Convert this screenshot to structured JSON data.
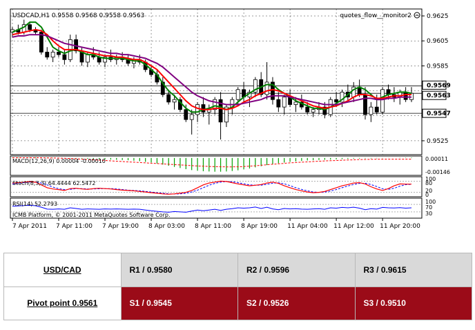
{
  "chart": {
    "title": "USDCAD,H1  0.9558 0.9568 0.9558 0.9563",
    "indicator_label": "quotes_flow__monitor2",
    "price_ticks": [
      "0.9625",
      "0.9605",
      "0.9585",
      "0.9525"
    ],
    "price_tags": [
      "0.9569",
      "0.9563",
      "0.9547"
    ],
    "time_ticks": [
      "7 Apr 2011",
      "7 Apr 11:00",
      "7 Apr 19:00",
      "8 Apr 03:00",
      "8 Apr 11:00",
      "8 Apr 19:00",
      "11 Apr 04:00",
      "11 Apr 12:00",
      "11 Apr 20:00"
    ],
    "copyright": "ICMB Platform, © 2001-2011 MetaQuotes Software Corp.",
    "colors": {
      "candle": "#000000",
      "ma_fast": "#008000",
      "ma_mid": "#ff0000",
      "ma_slow": "#800080",
      "macd": "#00a000",
      "signal": "#ff0000",
      "stoch_main": "#ff0000",
      "stoch_signal": "#0000ff",
      "rsi": "#0000ff"
    }
  },
  "macd": {
    "label": "MACD(12,26,9) 0.00004 -0.00010",
    "ticks": [
      "0.00011",
      "-0.00146"
    ]
  },
  "stoch": {
    "label": "Stoch(8,3,3) 64.4444 62.5472",
    "ticks": [
      "100",
      "80",
      "20",
      "0"
    ]
  },
  "rsi": {
    "label": "RSI(14) 52.2793",
    "ticks": [
      "100",
      "70",
      "30"
    ]
  },
  "chart_data": {
    "type": "candlestick",
    "title": "USDCAD,H1  0.9558 0.9568 0.9558 0.9563",
    "ylim": [
      0.9515,
      0.963
    ],
    "horizontal_levels": [
      0.9569,
      0.9563,
      0.9547
    ],
    "candles": [
      [
        0.9612,
        0.9616,
        0.9608,
        0.9614
      ],
      [
        0.9614,
        0.9618,
        0.961,
        0.9612
      ],
      [
        0.9612,
        0.9622,
        0.961,
        0.9618
      ],
      [
        0.9618,
        0.962,
        0.9612,
        0.9614
      ],
      [
        0.9614,
        0.9616,
        0.961,
        0.9612
      ],
      [
        0.9612,
        0.9614,
        0.9594,
        0.9596
      ],
      [
        0.9596,
        0.96,
        0.959,
        0.9592
      ],
      [
        0.9592,
        0.9598,
        0.9588,
        0.9596
      ],
      [
        0.9596,
        0.96,
        0.9592,
        0.9594
      ],
      [
        0.9594,
        0.9598,
        0.9586,
        0.959
      ],
      [
        0.959,
        0.961,
        0.9588,
        0.9606
      ],
      [
        0.9606,
        0.961,
        0.9595,
        0.9597
      ],
      [
        0.9597,
        0.96,
        0.9585,
        0.9588
      ],
      [
        0.9588,
        0.9596,
        0.9584,
        0.9594
      ],
      [
        0.9594,
        0.96,
        0.959,
        0.9592
      ],
      [
        0.9592,
        0.9596,
        0.9586,
        0.9588
      ],
      [
        0.9588,
        0.9594,
        0.9584,
        0.9592
      ],
      [
        0.9592,
        0.9598,
        0.9588,
        0.959
      ],
      [
        0.959,
        0.9594,
        0.9586,
        0.9592
      ],
      [
        0.9592,
        0.9596,
        0.9588,
        0.959
      ],
      [
        0.959,
        0.9594,
        0.9585,
        0.9587
      ],
      [
        0.9587,
        0.9592,
        0.9583,
        0.959
      ],
      [
        0.959,
        0.9594,
        0.9586,
        0.9588
      ],
      [
        0.9588,
        0.959,
        0.958,
        0.9582
      ],
      [
        0.9582,
        0.9586,
        0.9576,
        0.9578
      ],
      [
        0.9578,
        0.9582,
        0.957,
        0.9572
      ],
      [
        0.9572,
        0.9576,
        0.956,
        0.9562
      ],
      [
        0.9562,
        0.9566,
        0.9554,
        0.9556
      ],
      [
        0.9556,
        0.9562,
        0.955,
        0.9558
      ],
      [
        0.9558,
        0.956,
        0.9548,
        0.955
      ],
      [
        0.955,
        0.9554,
        0.954,
        0.9542
      ],
      [
        0.9542,
        0.955,
        0.953,
        0.9546
      ],
      [
        0.9546,
        0.9556,
        0.954,
        0.9554
      ],
      [
        0.9554,
        0.956,
        0.9544,
        0.9548
      ],
      [
        0.9548,
        0.9554,
        0.9538,
        0.955
      ],
      [
        0.955,
        0.956,
        0.9546,
        0.9558
      ],
      [
        0.9558,
        0.9564,
        0.9526,
        0.954
      ],
      [
        0.954,
        0.9554,
        0.9536,
        0.9552
      ],
      [
        0.9552,
        0.956,
        0.9546,
        0.9558
      ],
      [
        0.9558,
        0.9568,
        0.9554,
        0.9566
      ],
      [
        0.9566,
        0.9572,
        0.9556,
        0.956
      ],
      [
        0.956,
        0.9566,
        0.9552,
        0.9564
      ],
      [
        0.9564,
        0.9576,
        0.956,
        0.9574
      ],
      [
        0.9574,
        0.958,
        0.956,
        0.9562
      ],
      [
        0.9562,
        0.9588,
        0.9558,
        0.9572
      ],
      [
        0.9572,
        0.9576,
        0.9554,
        0.9558
      ],
      [
        0.9558,
        0.9564,
        0.9548,
        0.9552
      ],
      [
        0.9552,
        0.9562,
        0.9546,
        0.956
      ],
      [
        0.956,
        0.9566,
        0.9552,
        0.9554
      ],
      [
        0.9554,
        0.956,
        0.9548,
        0.9556
      ],
      [
        0.9556,
        0.9562,
        0.955,
        0.9552
      ],
      [
        0.9552,
        0.9556,
        0.9546,
        0.9548
      ],
      [
        0.9548,
        0.9552,
        0.9544,
        0.955
      ],
      [
        0.955,
        0.9556,
        0.9546,
        0.9552
      ],
      [
        0.9552,
        0.9556,
        0.9543,
        0.9546
      ],
      [
        0.9546,
        0.956,
        0.9544,
        0.9558
      ],
      [
        0.9558,
        0.9564,
        0.9552,
        0.9556
      ],
      [
        0.9556,
        0.9566,
        0.9552,
        0.9564
      ],
      [
        0.9564,
        0.957,
        0.9556,
        0.956
      ],
      [
        0.956,
        0.9572,
        0.9556,
        0.9568
      ],
      [
        0.9568,
        0.9574,
        0.956,
        0.9562
      ],
      [
        0.9562,
        0.9568,
        0.9542,
        0.9546
      ],
      [
        0.9546,
        0.9556,
        0.954,
        0.9552
      ],
      [
        0.9552,
        0.9562,
        0.9546,
        0.9548
      ],
      [
        0.9548,
        0.9568,
        0.9546,
        0.9566
      ],
      [
        0.9566,
        0.957,
        0.9558,
        0.9562
      ],
      [
        0.9562,
        0.9568,
        0.9556,
        0.956
      ],
      [
        0.956,
        0.9566,
        0.9554,
        0.9564
      ],
      [
        0.9564,
        0.9568,
        0.9556,
        0.9558
      ],
      [
        0.9558,
        0.9568,
        0.9556,
        0.9563
      ]
    ],
    "series": [
      {
        "name": "MA fast",
        "values": [
          0.9612,
          0.9614,
          0.9616,
          0.962,
          0.962,
          0.9616,
          0.9608,
          0.96,
          0.9597,
          0.9595,
          0.9597,
          0.9598,
          0.9596,
          0.9594,
          0.9594,
          0.9592,
          0.9591,
          0.9591,
          0.9591,
          0.9591,
          0.959,
          0.9589,
          0.9589,
          0.9586,
          0.9582,
          0.9578,
          0.9571,
          0.9565,
          0.9561,
          0.9556,
          0.9551,
          0.9548,
          0.9548,
          0.955,
          0.9551,
          0.9553,
          0.9552,
          0.955,
          0.9552,
          0.9556,
          0.956,
          0.9563,
          0.9566,
          0.9568,
          0.957,
          0.957,
          0.9566,
          0.9563,
          0.956,
          0.9557,
          0.9555,
          0.9553,
          0.9551,
          0.9551,
          0.955,
          0.9552,
          0.9555,
          0.9558,
          0.9562,
          0.9566,
          0.9568,
          0.9566,
          0.9562,
          0.9558,
          0.956,
          0.9562,
          0.9563,
          0.9564,
          0.9564,
          0.9563
        ]
      },
      {
        "name": "MA mid",
        "values": [
          0.961,
          0.9611,
          0.9612,
          0.9613,
          0.9614,
          0.9613,
          0.961,
          0.9605,
          0.9601,
          0.9598,
          0.9598,
          0.9598,
          0.9597,
          0.9596,
          0.9595,
          0.9594,
          0.9593,
          0.9593,
          0.9592,
          0.9592,
          0.9591,
          0.959,
          0.959,
          0.9588,
          0.9585,
          0.9582,
          0.9577,
          0.9572,
          0.9567,
          0.9562,
          0.9557,
          0.9553,
          0.9551,
          0.955,
          0.955,
          0.9551,
          0.9551,
          0.955,
          0.9551,
          0.9553,
          0.9556,
          0.9558,
          0.9561,
          0.9563,
          0.9565,
          0.9566,
          0.9565,
          0.9563,
          0.9561,
          0.9559,
          0.9557,
          0.9555,
          0.9553,
          0.9552,
          0.9551,
          0.9552,
          0.9553,
          0.9555,
          0.9557,
          0.956,
          0.9562,
          0.9562,
          0.9561,
          0.9559,
          0.9559,
          0.956,
          0.9561,
          0.9561,
          0.9562,
          0.9562
        ]
      },
      {
        "name": "MA slow",
        "values": [
          0.9608,
          0.9609,
          0.9609,
          0.961,
          0.961,
          0.961,
          0.9609,
          0.9607,
          0.9605,
          0.9603,
          0.9602,
          0.9601,
          0.96,
          0.9599,
          0.9598,
          0.9597,
          0.9596,
          0.9595,
          0.9595,
          0.9594,
          0.9594,
          0.9593,
          0.9592,
          0.9591,
          0.9589,
          0.9587,
          0.9584,
          0.958,
          0.9576,
          0.9572,
          0.9568,
          0.9564,
          0.9561,
          0.9559,
          0.9557,
          0.9556,
          0.9555,
          0.9554,
          0.9554,
          0.9554,
          0.9555,
          0.9556,
          0.9557,
          0.9558,
          0.956,
          0.9561,
          0.9561,
          0.9561,
          0.956,
          0.9559,
          0.9558,
          0.9557,
          0.9556,
          0.9555,
          0.9554,
          0.9554,
          0.9554,
          0.9555,
          0.9556,
          0.9557,
          0.9558,
          0.9559,
          0.9559,
          0.9558,
          0.9558,
          0.9559,
          0.9559,
          0.956,
          0.956,
          0.956
        ]
      }
    ],
    "macd_histogram": [
      4e-05,
      4e-05,
      5e-05,
      6e-05,
      6e-05,
      5e-05,
      4e-05,
      2e-05,
      1e-05,
      0.0,
      -2e-05,
      -4e-05,
      -5e-05,
      -7e-05,
      -8e-05,
      -0.0001,
      -0.00012,
      -0.00014,
      -0.00016,
      -0.00018,
      -0.0002,
      -0.00024,
      -0.00028,
      -0.00034,
      -0.0004,
      -0.00048,
      -0.00058,
      -0.00068,
      -0.00078,
      -0.00088,
      -0.00098,
      -0.00106,
      -0.00112,
      -0.00116,
      -0.00118,
      -0.0012,
      -0.0012,
      -0.00118,
      -0.00114,
      -0.00108,
      -0.001,
      -0.00092,
      -0.00082,
      -0.00072,
      -0.00062,
      -0.00054,
      -0.00046,
      -0.0004,
      -0.00034,
      -0.0003,
      -0.00026,
      -0.00022,
      -0.0002,
      -0.00018,
      -0.00016,
      -0.00014,
      -0.00012,
      -0.0001,
      -8e-05,
      -6e-05,
      -5e-05,
      -4e-05,
      -4e-05,
      -3e-05,
      -2e-05,
      -1e-05,
      0.0,
      2e-05,
      3e-05,
      4e-05
    ],
    "macd_signal": [
      2e-05,
      2e-05,
      2e-05,
      2e-05,
      2e-05,
      2e-05,
      1e-05,
      0.0,
      -1e-05,
      -3e-05,
      -5e-05,
      -7e-05,
      -0.0001,
      -0.00013,
      -0.00016,
      -0.00019,
      -0.00022,
      -0.00025,
      -0.00028,
      -0.00031,
      -0.00034,
      -0.00037,
      -0.0004,
      -0.00043,
      -0.00046,
      -0.00049,
      -0.00052,
      -0.00055,
      -0.00058,
      -0.00061,
      -0.00064,
      -0.00067,
      -0.0007,
      -0.00072,
      -0.00074,
      -0.00076,
      -0.00077,
      -0.00078,
      -0.00078,
      -0.00077,
      -0.00075,
      -0.00072,
      -0.00068,
      -0.00064,
      -0.00059,
      -0.00055,
      -0.00051,
      -0.00047,
      -0.00043,
      -0.0004,
      -0.00037,
      -0.00034,
      -0.00031,
      -0.00028,
      -0.00026,
      -0.00024,
      -0.00022,
      -0.0002,
      -0.00018,
      -0.00016,
      -0.00014,
      -0.00013,
      -0.00012,
      -0.00011,
      -0.0001,
      -0.0001,
      -0.0001,
      -0.0001,
      -0.0001,
      -0.0001
    ],
    "stoch_main": [
      70,
      72,
      75,
      78,
      74,
      60,
      45,
      38,
      35,
      30,
      40,
      42,
      38,
      36,
      40,
      42,
      40,
      38,
      35,
      32,
      30,
      28,
      25,
      22,
      18,
      15,
      12,
      10,
      12,
      15,
      20,
      30,
      45,
      60,
      70,
      75,
      80,
      78,
      72,
      65,
      60,
      55,
      58,
      62,
      70,
      75,
      68,
      55,
      45,
      35,
      28,
      22,
      18,
      20,
      25,
      35,
      45,
      55,
      62,
      70,
      72,
      65,
      50,
      38,
      30,
      40,
      55,
      65,
      64,
      64
    ],
    "stoch_signal": [
      65,
      68,
      72,
      75,
      75,
      70,
      60,
      48,
      40,
      35,
      36,
      40,
      40,
      38,
      38,
      39,
      40,
      40,
      38,
      35,
      32,
      30,
      28,
      25,
      22,
      18,
      15,
      12,
      11,
      12,
      15,
      22,
      32,
      45,
      58,
      68,
      75,
      78,
      77,
      72,
      66,
      60,
      58,
      58,
      63,
      69,
      71,
      66,
      56,
      45,
      36,
      28,
      22,
      20,
      21,
      27,
      35,
      45,
      54,
      62,
      68,
      69,
      62,
      51,
      39,
      36,
      42,
      53,
      61,
      63
    ],
    "rsi": [
      60,
      62,
      64,
      65,
      63,
      55,
      45,
      44,
      46,
      44,
      52,
      48,
      44,
      46,
      45,
      44,
      46,
      45,
      46,
      45,
      44,
      45,
      44,
      40,
      36,
      33,
      30,
      28,
      32,
      30,
      28,
      34,
      40,
      36,
      40,
      44,
      38,
      44,
      47,
      52,
      50,
      52,
      56,
      48,
      55,
      46,
      42,
      48,
      46,
      47,
      45,
      44,
      46,
      47,
      44,
      52,
      50,
      54,
      52,
      55,
      50,
      42,
      47,
      45,
      54,
      52,
      51,
      53,
      50,
      52
    ]
  },
  "pivots": {
    "pair": "USD/CAD",
    "pivot_label": "Pivot point 0.9561",
    "r1": "R1 / 0.9580",
    "r2": "R2 / 0.9596",
    "r3": "R3 / 0.9615",
    "s1": "S1 / 0.9545",
    "s2": "S2 / 0.9526",
    "s3": "S3 / 0.9510"
  }
}
